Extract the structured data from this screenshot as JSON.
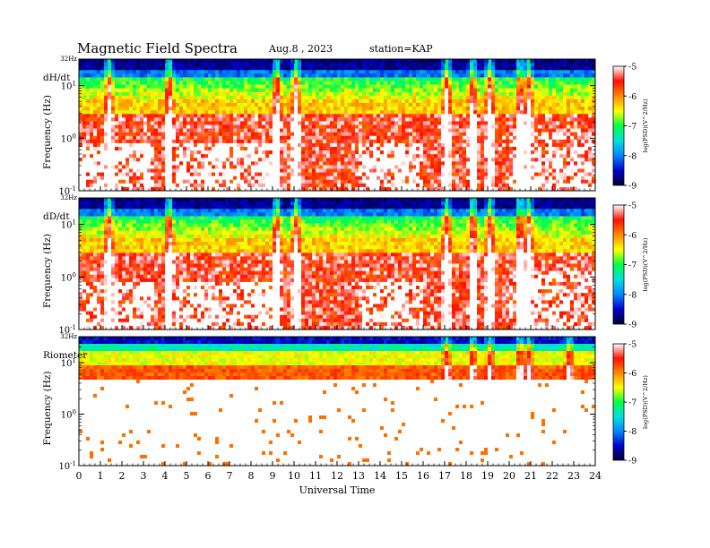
{
  "header": {
    "title": "Magnetic  Field  Spectra",
    "date": "Aug.8  , 2023",
    "station": "station=KAP"
  },
  "chart_data": {
    "type": "heatmap",
    "xlabel": "Universal Time",
    "x_ticks": [
      "0",
      "1",
      "2",
      "3",
      "4",
      "5",
      "6",
      "7",
      "8",
      "9",
      "10",
      "11",
      "12",
      "13",
      "14",
      "15",
      "16",
      "17",
      "18",
      "19",
      "20",
      "21",
      "22",
      "23",
      "24"
    ],
    "xlim": [
      0,
      24
    ],
    "colorbar": {
      "ticks": [
        "-5",
        "-6",
        "-7",
        "-8",
        "-9"
      ],
      "label": "log(PSD)(V^2/Hz)",
      "range": [
        -9,
        -5
      ],
      "colors": [
        "#000033",
        "#0000cc",
        "#0088ff",
        "#00e0e0",
        "#00ff44",
        "#ffff00",
        "#ff8800",
        "#ff1100",
        "#ffffff"
      ]
    },
    "panels": [
      {
        "name": "dH/dt",
        "ylabel": "Frequency  (Hz)",
        "top_tick": "32Hz",
        "y_ticks": [
          "10^1",
          "10^0",
          "10^-1"
        ],
        "ylim": [
          0.1,
          32
        ],
        "log_y": true,
        "description_profile": "broadband",
        "noise_floor_hour_ranges": [
          [
            0,
            3.5
          ],
          [
            4.5,
            9
          ],
          [
            13,
            16
          ]
        ],
        "bursts_ut": [
          1.4,
          4.2,
          9.2,
          10.1,
          17.1,
          18.3,
          19.1,
          20.5,
          20.9
        ]
      },
      {
        "name": "dD/dt",
        "ylabel": "Frequency  (Hz)",
        "top_tick": "32Hz",
        "y_ticks": [
          "10^1",
          "10^0",
          "10^-1"
        ],
        "ylim": [
          0.1,
          32
        ],
        "log_y": true,
        "description_profile": "broadband",
        "noise_floor_hour_ranges": [
          [
            0,
            3.5
          ],
          [
            4.5,
            9
          ],
          [
            13,
            16
          ]
        ],
        "bursts_ut": [
          1.4,
          4.2,
          9.2,
          10.1,
          17.1,
          18.3,
          19.1,
          20.5,
          20.9
        ]
      },
      {
        "name": "Riometer",
        "ylabel": "Frequency  (Hz)",
        "top_tick": "32Hz",
        "y_ticks": [
          "10^1",
          "10^0",
          "10^-1"
        ],
        "ylim": [
          0.1,
          32
        ],
        "log_y": true,
        "description_profile": "narrowband-top",
        "noise_floor_hour_ranges": [],
        "bursts_ut": [
          17.1,
          18.3,
          19.1,
          20.5,
          20.9,
          22.8
        ]
      }
    ]
  }
}
